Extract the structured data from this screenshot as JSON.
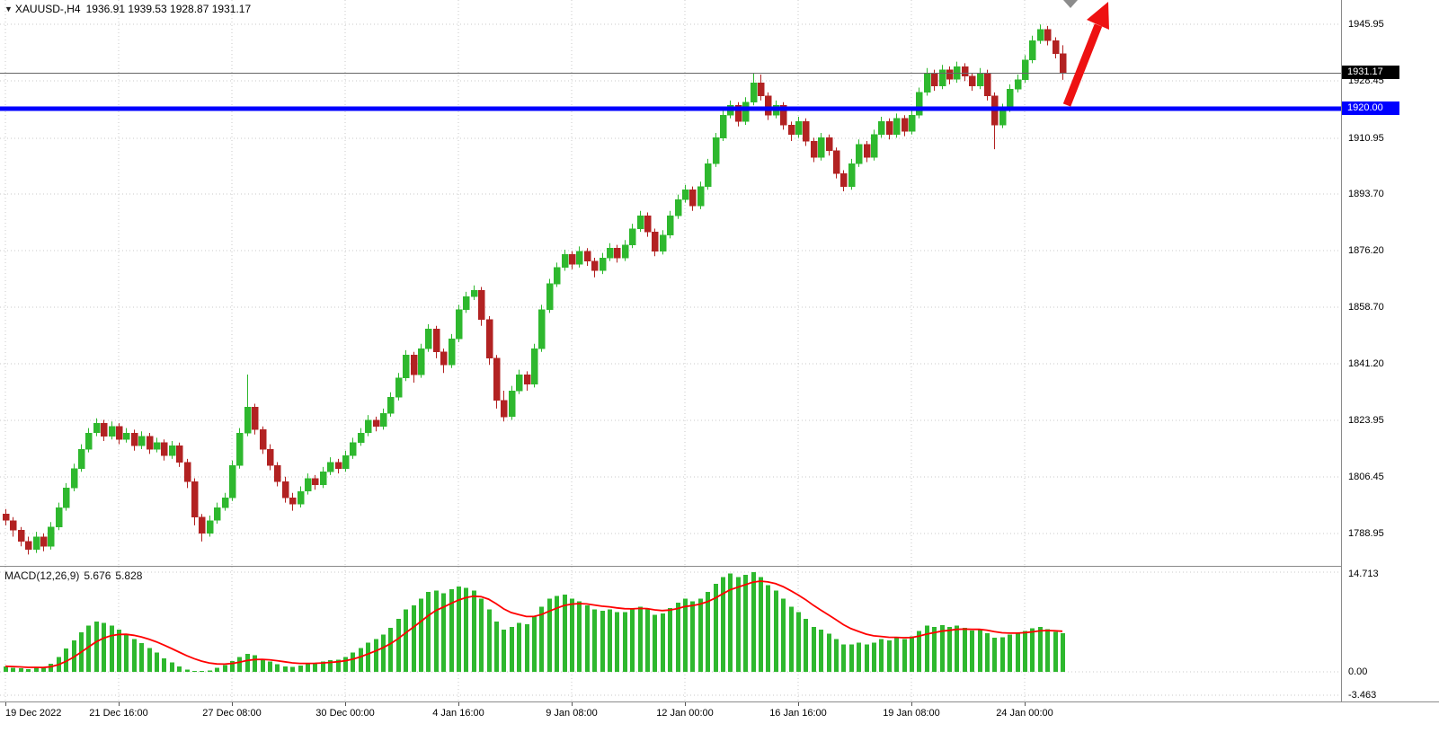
{
  "header": {
    "dropdown_icon": "▼",
    "symbol_timeframe": "XAUUSD-,H4",
    "ohlc_values": "1936.91 1939.53 1928.87 1931.17"
  },
  "indicator_header": {
    "title": "MACD(12,26,9)",
    "main_value": "5.676",
    "signal_value": "5.828"
  },
  "colors": {
    "bull": "#2eb82e",
    "bear": "#b22222",
    "macd_histogram": "#2eb82e",
    "macd_signal": "#ff0000",
    "level_line": "#0000ff",
    "bid_line": "#666666",
    "grid": "#c9c9c9",
    "arrow": "#ee1111"
  },
  "chart_data": {
    "type": "candlestick",
    "symbol": "XAUUSD-",
    "timeframe": "H4",
    "current_bar": {
      "open": 1936.91,
      "high": 1939.53,
      "low": 1928.87,
      "close": 1931.17
    },
    "price_range": {
      "top": 1953.5,
      "bottom": 1779.0
    },
    "y_axis_ticks": [
      {
        "label": "1945.95",
        "value": 1945.95
      },
      {
        "label": "1928.45",
        "value": 1928.45
      },
      {
        "label": "1910.95",
        "value": 1910.95
      },
      {
        "label": "1893.70",
        "value": 1893.7
      },
      {
        "label": "1876.20",
        "value": 1876.2
      },
      {
        "label": "1858.70",
        "value": 1858.7
      },
      {
        "label": "1841.20",
        "value": 1841.2
      },
      {
        "label": "1823.95",
        "value": 1823.95
      },
      {
        "label": "1806.45",
        "value": 1806.45
      },
      {
        "label": "1788.95",
        "value": 1788.95
      }
    ],
    "bid_line": {
      "label": "1931.17",
      "price": 1931.17
    },
    "horizontal_level": {
      "label": "1920.00",
      "price": 1920.0
    },
    "x_labels": [
      {
        "text": "19 Dec 2022",
        "bar": 0
      },
      {
        "text": "21 Dec 16:00",
        "bar": 15
      },
      {
        "text": "27 Dec 08:00",
        "bar": 30
      },
      {
        "text": "30 Dec 00:00",
        "bar": 45
      },
      {
        "text": "4 Jan 16:00",
        "bar": 60
      },
      {
        "text": "9 Jan 08:00",
        "bar": 75
      },
      {
        "text": "12 Jan 00:00",
        "bar": 90
      },
      {
        "text": "16 Jan 16:00",
        "bar": 105
      },
      {
        "text": "19 Jan 08:00",
        "bar": 120
      },
      {
        "text": "24 Jan 00:00",
        "bar": 135
      }
    ],
    "annotations": [
      "red-up-trend-arrow",
      "gray-chart-shift-marker"
    ],
    "candles": [
      [
        1795,
        1796.5,
        1791.5,
        1793
      ],
      [
        1793,
        1794,
        1788,
        1790
      ],
      [
        1790,
        1791,
        1785,
        1786.5
      ],
      [
        1786.5,
        1788,
        1782.5,
        1784
      ],
      [
        1784,
        1789.5,
        1783,
        1788
      ],
      [
        1788,
        1789,
        1783.5,
        1785
      ],
      [
        1785,
        1792.5,
        1784,
        1791
      ],
      [
        1791,
        1798.5,
        1790,
        1797
      ],
      [
        1797,
        1804.5,
        1796,
        1803
      ],
      [
        1803,
        1810.5,
        1802,
        1809
      ],
      [
        1809,
        1816.5,
        1808,
        1815
      ],
      [
        1815,
        1821.5,
        1814,
        1820
      ],
      [
        1820,
        1824.5,
        1819,
        1823
      ],
      [
        1823,
        1824,
        1817.5,
        1819
      ],
      [
        1819,
        1823.5,
        1818,
        1822
      ],
      [
        1822,
        1823,
        1816.5,
        1818
      ],
      [
        1818,
        1821.5,
        1817,
        1820
      ],
      [
        1820,
        1821,
        1814.5,
        1816
      ],
      [
        1816,
        1820.5,
        1815,
        1819
      ],
      [
        1819,
        1820,
        1813.5,
        1815
      ],
      [
        1815,
        1818.5,
        1814,
        1817
      ],
      [
        1817,
        1818,
        1811.5,
        1813
      ],
      [
        1813,
        1817.5,
        1812,
        1816
      ],
      [
        1816,
        1817,
        1809.5,
        1811
      ],
      [
        1811,
        1812,
        1803,
        1805
      ],
      [
        1805,
        1806,
        1791.5,
        1794
      ],
      [
        1794,
        1795,
        1786.5,
        1789
      ],
      [
        1789,
        1794.5,
        1788,
        1793
      ],
      [
        1793,
        1798.5,
        1792,
        1797
      ],
      [
        1797,
        1801.5,
        1796,
        1800
      ],
      [
        1800,
        1811.5,
        1799,
        1810
      ],
      [
        1810,
        1821.5,
        1809,
        1820
      ],
      [
        1820,
        1838,
        1819,
        1828
      ],
      [
        1828,
        1829,
        1819.5,
        1821
      ],
      [
        1821,
        1822,
        1813.5,
        1815
      ],
      [
        1815,
        1816.5,
        1808.5,
        1810
      ],
      [
        1810,
        1811,
        1803.5,
        1805
      ],
      [
        1805,
        1806.5,
        1798.5,
        1800
      ],
      [
        1800,
        1801.5,
        1796,
        1798
      ],
      [
        1798,
        1803.5,
        1797,
        1802
      ],
      [
        1802,
        1807.5,
        1801,
        1806
      ],
      [
        1806,
        1807,
        1802.5,
        1804
      ],
      [
        1804,
        1809.5,
        1803,
        1808
      ],
      [
        1808,
        1812.5,
        1807,
        1811
      ],
      [
        1811,
        1812,
        1807.5,
        1809
      ],
      [
        1809,
        1814.5,
        1808,
        1813
      ],
      [
        1813,
        1818.5,
        1812,
        1817
      ],
      [
        1817,
        1821.5,
        1816,
        1820
      ],
      [
        1820,
        1825.5,
        1819,
        1824
      ],
      [
        1824,
        1825,
        1820.5,
        1822
      ],
      [
        1822,
        1827.5,
        1821,
        1826
      ],
      [
        1826,
        1832.5,
        1825,
        1831
      ],
      [
        1831,
        1838.5,
        1830,
        1837
      ],
      [
        1837,
        1845.5,
        1836,
        1844
      ],
      [
        1844,
        1845,
        1835.5,
        1838
      ],
      [
        1838,
        1847.5,
        1837,
        1846
      ],
      [
        1846,
        1853.5,
        1845,
        1852
      ],
      [
        1852,
        1853,
        1843,
        1845
      ],
      [
        1845,
        1846,
        1838.5,
        1841
      ],
      [
        1841,
        1850.5,
        1840,
        1849
      ],
      [
        1849,
        1859.5,
        1848,
        1858
      ],
      [
        1858,
        1863.5,
        1857,
        1862
      ],
      [
        1862,
        1865.5,
        1861,
        1864
      ],
      [
        1864,
        1865,
        1853,
        1855
      ],
      [
        1855,
        1856,
        1841,
        1843
      ],
      [
        1843,
        1844,
        1827.5,
        1830
      ],
      [
        1830,
        1833,
        1823.5,
        1825
      ],
      [
        1825,
        1834.5,
        1824,
        1833
      ],
      [
        1833,
        1839.5,
        1832,
        1838
      ],
      [
        1838,
        1839,
        1833,
        1835
      ],
      [
        1835,
        1847.5,
        1834,
        1846
      ],
      [
        1846,
        1859.5,
        1845,
        1858
      ],
      [
        1858,
        1867.5,
        1857,
        1866
      ],
      [
        1866,
        1872.5,
        1865,
        1871
      ],
      [
        1871,
        1876.5,
        1870,
        1875
      ],
      [
        1875,
        1876,
        1870.5,
        1872
      ],
      [
        1872,
        1877.5,
        1871,
        1876
      ],
      [
        1876,
        1877,
        1871.5,
        1873
      ],
      [
        1873,
        1874,
        1868,
        1870
      ],
      [
        1870,
        1875.5,
        1869,
        1874
      ],
      [
        1874,
        1878.5,
        1873,
        1877
      ],
      [
        1877,
        1878,
        1872.5,
        1874
      ],
      [
        1874,
        1879.5,
        1873,
        1878
      ],
      [
        1878,
        1884.5,
        1877,
        1883
      ],
      [
        1883,
        1888.5,
        1882,
        1887
      ],
      [
        1887,
        1888,
        1880.5,
        1882
      ],
      [
        1882,
        1883,
        1874.5,
        1876
      ],
      [
        1876,
        1882.5,
        1875,
        1881
      ],
      [
        1881,
        1888.5,
        1880,
        1887
      ],
      [
        1887,
        1893.5,
        1886,
        1892
      ],
      [
        1892,
        1896.5,
        1891,
        1895
      ],
      [
        1895,
        1896,
        1888.5,
        1890
      ],
      [
        1890,
        1897.5,
        1889,
        1896
      ],
      [
        1896,
        1904.5,
        1895,
        1903
      ],
      [
        1903,
        1912.5,
        1902,
        1911
      ],
      [
        1911,
        1919.5,
        1910,
        1918
      ],
      [
        1918,
        1922.5,
        1917,
        1921
      ],
      [
        1921,
        1922,
        1914.5,
        1916
      ],
      [
        1916,
        1923.5,
        1915,
        1922
      ],
      [
        1922,
        1931,
        1921,
        1928
      ],
      [
        1928,
        1930.5,
        1922.5,
        1924
      ],
      [
        1924,
        1925,
        1916.5,
        1918
      ],
      [
        1918,
        1922.5,
        1917,
        1921
      ],
      [
        1921,
        1922,
        1913.5,
        1915
      ],
      [
        1915,
        1916,
        1910,
        1912
      ],
      [
        1912,
        1917.5,
        1911,
        1916
      ],
      [
        1916,
        1917,
        1908.5,
        1910
      ],
      [
        1910,
        1911,
        1903.5,
        1905
      ],
      [
        1905,
        1912.5,
        1904,
        1911
      ],
      [
        1911,
        1912,
        1905.5,
        1907
      ],
      [
        1907,
        1908,
        1898.5,
        1900
      ],
      [
        1900,
        1901,
        1894.5,
        1896
      ],
      [
        1896,
        1904.5,
        1895,
        1903
      ],
      [
        1903,
        1910.5,
        1902,
        1909
      ],
      [
        1909,
        1910,
        1903.5,
        1905
      ],
      [
        1905,
        1913.5,
        1904,
        1912
      ],
      [
        1912,
        1917.5,
        1911,
        1916
      ],
      [
        1916,
        1917,
        1910.5,
        1912
      ],
      [
        1912,
        1918.5,
        1911,
        1917
      ],
      [
        1917,
        1918,
        1911.5,
        1913
      ],
      [
        1913,
        1919.5,
        1912,
        1918
      ],
      [
        1918,
        1926.5,
        1917,
        1925
      ],
      [
        1925,
        1932.5,
        1924,
        1931
      ],
      [
        1931,
        1932,
        1925.5,
        1927
      ],
      [
        1927,
        1933.5,
        1926,
        1932
      ],
      [
        1932,
        1933,
        1927.5,
        1929
      ],
      [
        1929,
        1934.5,
        1928,
        1933
      ],
      [
        1933,
        1934,
        1928.5,
        1930
      ],
      [
        1930,
        1931,
        1925.5,
        1927
      ],
      [
        1927,
        1932.5,
        1926,
        1931
      ],
      [
        1931,
        1932,
        1922.5,
        1924
      ],
      [
        1924,
        1925,
        1907.5,
        1915
      ],
      [
        1915,
        1921.5,
        1914,
        1920
      ],
      [
        1920,
        1927.5,
        1919,
        1926
      ],
      [
        1926,
        1930.5,
        1925,
        1929
      ],
      [
        1929,
        1936.5,
        1928,
        1935
      ],
      [
        1935,
        1942.5,
        1934,
        1941
      ],
      [
        1941,
        1945.95,
        1940,
        1944.5
      ],
      [
        1944.5,
        1945.5,
        1939.5,
        1941
      ],
      [
        1941,
        1942,
        1935.5,
        1937
      ],
      [
        1936.91,
        1939.53,
        1928.87,
        1931.17
      ]
    ],
    "indicator": {
      "type": "macd",
      "label": "MACD(12,26,9)",
      "params": [
        12,
        26,
        9
      ],
      "main": 5.676,
      "signal": 5.828,
      "signal_ema_period": 9,
      "range": {
        "top": 15.5,
        "bottom": -4.4
      },
      "y_ticks": [
        {
          "label": "14.713",
          "value": 14.713
        },
        {
          "label": "0.00",
          "value": 0
        },
        {
          "label": "-3.463",
          "value": -3.463
        }
      ],
      "histogram": [
        0.8,
        0.6,
        0.5,
        0.4,
        0.6,
        0.5,
        1.2,
        2.2,
        3.4,
        4.6,
        5.8,
        6.8,
        7.4,
        7.2,
        6.8,
        6.2,
        5.6,
        4.8,
        4.2,
        3.5,
        2.8,
        2.0,
        1.4,
        0.8,
        0.3,
        0.1,
        0.1,
        0.2,
        0.6,
        1.0,
        1.6,
        2.2,
        2.6,
        2.4,
        1.9,
        1.5,
        1.1,
        0.8,
        0.7,
        0.9,
        1.2,
        1.3,
        1.5,
        1.7,
        1.8,
        2.2,
        2.8,
        3.5,
        4.3,
        4.8,
        5.5,
        6.5,
        7.8,
        9.2,
        9.8,
        10.8,
        11.8,
        12.0,
        11.6,
        12.2,
        12.6,
        12.4,
        12.0,
        10.8,
        9.2,
        7.4,
        6.2,
        6.6,
        7.2,
        7.0,
        8.2,
        9.6,
        10.8,
        11.2,
        11.4,
        10.8,
        10.4,
        9.8,
        9.2,
        9.0,
        9.2,
        8.8,
        8.8,
        9.2,
        9.6,
        9.2,
        8.4,
        8.6,
        9.4,
        10.2,
        10.8,
        10.4,
        10.8,
        11.8,
        13.0,
        14.0,
        14.5,
        14.0,
        14.3,
        14.713,
        14.0,
        12.8,
        12.0,
        10.8,
        9.6,
        8.8,
        7.8,
        6.6,
        6.2,
        5.6,
        4.8,
        4.0,
        4.0,
        4.3,
        4.0,
        4.3,
        4.8,
        4.6,
        5.0,
        4.8,
        5.2,
        6.0,
        6.8,
        6.6,
        6.9,
        6.6,
        6.8,
        6.5,
        6.1,
        6.2,
        5.7,
        5.0,
        5.1,
        5.5,
        5.7,
        6.0,
        6.4,
        6.6,
        6.3,
        5.9,
        5.676
      ]
    }
  }
}
